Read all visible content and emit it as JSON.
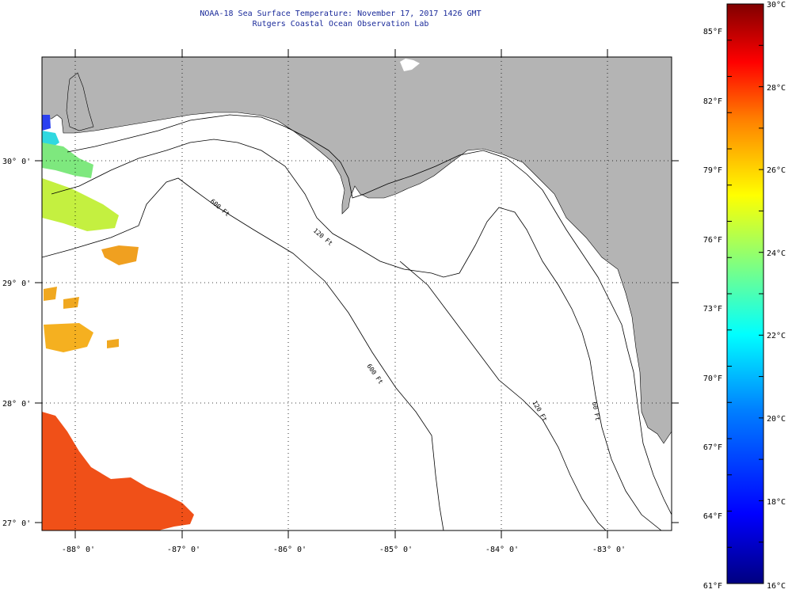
{
  "header": {
    "title": "NOAA-18 Sea Surface Temperature:  November 17, 2017 1426 GMT",
    "subtitle": "Rutgers Coastal Ocean Observation Lab"
  },
  "map": {
    "lat_labels": [
      "30° 0'",
      "29° 0'",
      "28° 0'",
      "27° 0'"
    ],
    "lon_labels": [
      "-88° 0'",
      "-87° 0'",
      "-86° 0'",
      "-85° 0'",
      "-84° 0'",
      "-83° 0'"
    ],
    "contour_labels": {
      "c120": "120 Ft",
      "c600": "600 Ft",
      "c600b": "600 Ft",
      "c120b": "120 Ft",
      "c60": "60 Ft"
    }
  },
  "colorbar": {
    "celsius_labels": [
      "30°C",
      "28°C",
      "26°C",
      "24°C",
      "22°C",
      "20°C",
      "18°C",
      "16°C"
    ],
    "fahrenheit_labels": [
      "85°F",
      "82°F",
      "79°F",
      "76°F",
      "73°F",
      "70°F",
      "67°F",
      "64°F",
      "61°F"
    ],
    "colors": [
      "#000080",
      "#0000ff",
      "#0080ff",
      "#00ffff",
      "#80ff80",
      "#ffff00",
      "#ff8000",
      "#ff0000",
      "#800000"
    ]
  },
  "land_color": "#b4b4b4"
}
